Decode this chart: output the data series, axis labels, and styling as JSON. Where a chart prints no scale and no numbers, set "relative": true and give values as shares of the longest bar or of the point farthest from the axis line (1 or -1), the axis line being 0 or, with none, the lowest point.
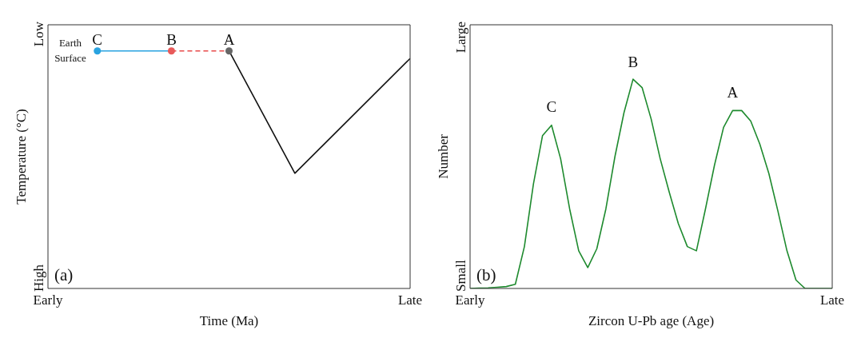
{
  "chart_data": [
    {
      "type": "line",
      "relative": true,
      "xlabel": "Time (Ma)",
      "ylabel": "Temperature (°C)",
      "grid": false,
      "categories": [
        "Early",
        null,
        null,
        null,
        null,
        null,
        null,
        null,
        null,
        null,
        null,
        null,
        null,
        null,
        null,
        null,
        null,
        null,
        null,
        null,
        null,
        null,
        null,
        null,
        null,
        null,
        null,
        null,
        null,
        null,
        null,
        null,
        null,
        null,
        null,
        null,
        null,
        null,
        null,
        null,
        null,
        null,
        null,
        null,
        "Late"
      ],
      "series": [
        {
          "color": "#29a3e0",
          "line_style": "solid",
          "values": [
            null,
            null,
            null,
            null,
            null,
            null,
            1,
            null,
            null,
            null,
            null,
            null,
            null,
            null,
            null,
            1,
            null,
            null,
            null,
            null,
            null,
            null,
            null,
            null,
            null,
            null,
            null,
            null,
            null,
            null,
            null,
            null,
            null,
            null,
            null,
            null,
            null,
            null,
            null,
            null,
            null,
            null,
            null,
            null,
            null
          ]
        },
        {
          "color": "#e84a4a",
          "line_style": "dashed",
          "values": [
            null,
            null,
            null,
            null,
            null,
            null,
            null,
            null,
            null,
            null,
            null,
            null,
            null,
            null,
            null,
            1,
            null,
            null,
            null,
            null,
            null,
            null,
            1,
            null,
            null,
            null,
            null,
            null,
            null,
            null,
            null,
            null,
            null,
            null,
            null,
            null,
            null,
            null,
            null,
            null,
            null,
            null,
            null,
            null,
            null
          ]
        },
        {
          "color": "#111111",
          "line_style": "solid",
          "values": [
            null,
            null,
            null,
            null,
            null,
            null,
            null,
            null,
            null,
            null,
            null,
            null,
            null,
            null,
            null,
            null,
            null,
            null,
            null,
            null,
            null,
            null,
            1,
            null,
            null,
            null,
            null,
            null,
            null,
            null,
            0.485,
            null,
            null,
            null,
            null,
            null,
            null,
            null,
            null,
            null,
            null,
            null,
            null,
            null,
            0.968
          ]
        },
        {
          "type": "scatter",
          "marker": "circle",
          "colors": [
            null,
            null,
            null,
            null,
            null,
            null,
            "#29a3e0",
            null,
            null,
            null,
            null,
            null,
            null,
            null,
            null,
            "#e85a5a",
            null,
            null,
            null,
            null,
            null,
            null,
            "#666666",
            null,
            null,
            null,
            null,
            null,
            null,
            null,
            null,
            null,
            null,
            null,
            null,
            null,
            null,
            null,
            null,
            null,
            null,
            null,
            null,
            null,
            null
          ],
          "values": [
            null,
            null,
            null,
            null,
            null,
            null,
            1,
            null,
            null,
            null,
            null,
            null,
            null,
            null,
            null,
            1,
            null,
            null,
            null,
            null,
            null,
            null,
            1,
            null,
            null,
            null,
            null,
            null,
            null,
            null,
            null,
            null,
            null,
            null,
            null,
            null,
            null,
            null,
            null,
            null,
            null,
            null,
            null,
            null,
            null
          ]
        }
      ],
      "annotations": [
        "(a)",
        "Low",
        "High",
        "Earth Surface",
        "C",
        "B",
        "A"
      ]
    },
    {
      "type": "line",
      "relative": true,
      "xlabel": "Zircon U-Pb age (Age)",
      "ylabel": "Number",
      "grid": false,
      "categories": [
        "Early",
        null,
        null,
        null,
        null,
        null,
        null,
        null,
        null,
        null,
        null,
        null,
        null,
        null,
        null,
        null,
        null,
        null,
        null,
        null,
        null,
        null,
        null,
        null,
        null,
        null,
        null,
        null,
        null,
        null,
        null,
        null,
        null,
        null,
        null,
        null,
        null,
        null,
        null,
        null,
        "Late"
      ],
      "series": [
        {
          "color": "#1e8a2e",
          "line_style": "solid",
          "values": [
            0,
            0.002,
            0.003,
            0.006,
            0.009,
            0.02,
            0.2,
            0.5,
            0.73,
            0.78,
            0.62,
            0.38,
            0.18,
            0.1,
            0.19,
            0.38,
            0.63,
            0.84,
            1,
            0.96,
            0.81,
            0.62,
            0.46,
            0.31,
            0.2,
            0.18,
            0.38,
            0.59,
            0.77,
            0.85,
            0.85,
            0.8,
            0.69,
            0.55,
            0.37,
            0.18,
            0.04,
            0,
            0,
            0,
            0
          ]
        }
      ],
      "annotations": [
        "(b)",
        "Large",
        "Small",
        "C",
        "B",
        "A"
      ]
    }
  ]
}
